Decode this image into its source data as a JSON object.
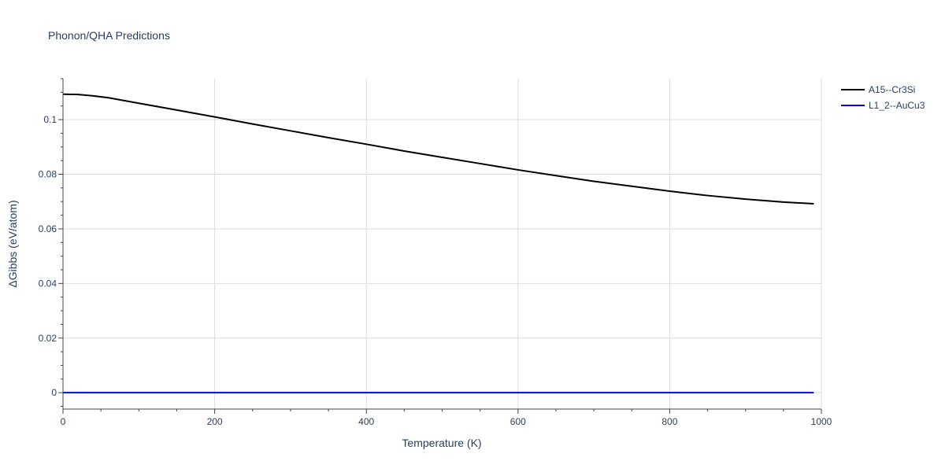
{
  "chart_data": {
    "type": "line",
    "title": "Phonon/QHA Predictions",
    "xlabel": "Temperature (K)",
    "ylabel": "ΔGibbs (eV/atom)",
    "xlim": [
      0,
      1000
    ],
    "ylim": [
      -0.006,
      0.115
    ],
    "x_ticks": [
      0,
      200,
      400,
      600,
      800,
      1000
    ],
    "x_tick_labels": [
      "0",
      "200",
      "400",
      "600",
      "800",
      "1000"
    ],
    "y_ticks": [
      0,
      0.02,
      0.04,
      0.06,
      0.08,
      0.1
    ],
    "y_tick_labels": [
      "0",
      "0.02",
      "0.04",
      "0.06",
      "0.08",
      "0.1"
    ],
    "grid": true,
    "legend_position": "top-right, outside plot",
    "series": [
      {
        "name": "A15--Cr3Si",
        "color": "#000000",
        "x": [
          0,
          20,
          40,
          60,
          80,
          100,
          150,
          200,
          250,
          300,
          350,
          400,
          450,
          500,
          550,
          600,
          650,
          700,
          750,
          800,
          850,
          900,
          950,
          990
        ],
        "y": [
          0.1093,
          0.1092,
          0.1087,
          0.108,
          0.107,
          0.106,
          0.1035,
          0.101,
          0.0984,
          0.0959,
          0.0934,
          0.091,
          0.0885,
          0.0862,
          0.0839,
          0.0816,
          0.0795,
          0.0774,
          0.0756,
          0.0738,
          0.0722,
          0.0709,
          0.0698,
          0.0692
        ]
      },
      {
        "name": "L1_2--AuCu3",
        "color": "#0000ff",
        "x": [
          0,
          990
        ],
        "y": [
          0,
          0
        ]
      }
    ]
  }
}
